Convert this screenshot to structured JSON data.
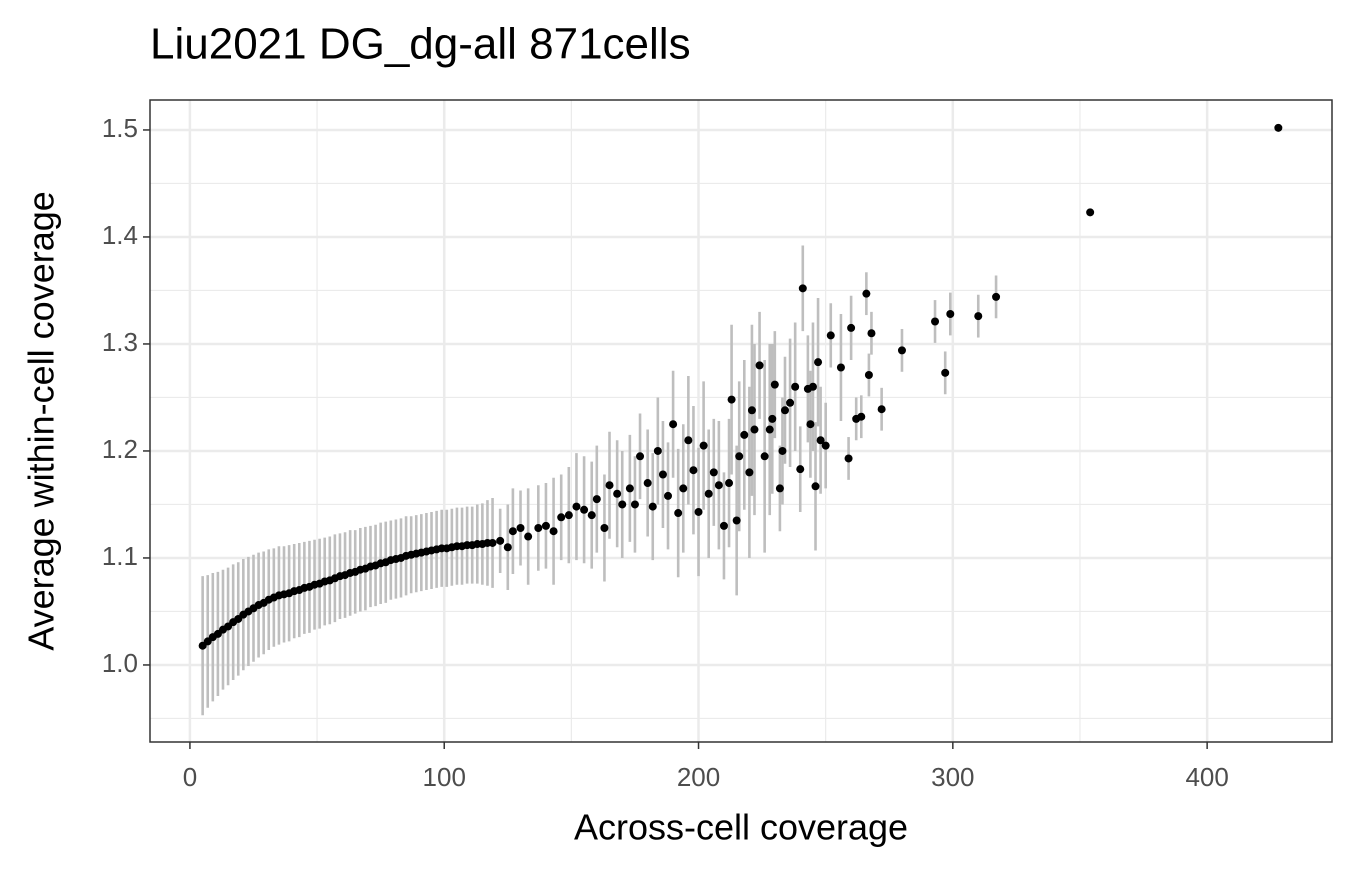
{
  "chart_data": {
    "type": "scatter",
    "title": "Liu2021 DG_dg-all 871cells",
    "x_label": "Across-cell coverage",
    "y_label": "Average within-cell coverage",
    "color": "#000000",
    "error_color": "#bebebe",
    "x": [
      5,
      7,
      9,
      11,
      13,
      15,
      17,
      19,
      21,
      23,
      25,
      27,
      29,
      31,
      33,
      35,
      37,
      39,
      41,
      43,
      45,
      47,
      49,
      51,
      53,
      55,
      57,
      59,
      61,
      63,
      65,
      67,
      69,
      71,
      73,
      75,
      77,
      79,
      81,
      83,
      85,
      87,
      89,
      91,
      93,
      95,
      97,
      99,
      101,
      103,
      105,
      107,
      109,
      111,
      113,
      115,
      117,
      119,
      122,
      125,
      127,
      130,
      133,
      137,
      140,
      143,
      146,
      149,
      152,
      155,
      158,
      160,
      163,
      165,
      168,
      170,
      173,
      175,
      177,
      180,
      182,
      184,
      186,
      188,
      190,
      192,
      194,
      196,
      198,
      200,
      202,
      204,
      206,
      208,
      210,
      212,
      213,
      215,
      216,
      218,
      220,
      221,
      222,
      224,
      226,
      228,
      229,
      230,
      232,
      233,
      234,
      236,
      238,
      240,
      241,
      243,
      244,
      245,
      246,
      247,
      248,
      250,
      252,
      256,
      259,
      260,
      262,
      264,
      266,
      267,
      268,
      272,
      280,
      293,
      297,
      299,
      310,
      317,
      354,
      428
    ],
    "values": [
      1.018,
      1.022,
      1.026,
      1.029,
      1.033,
      1.036,
      1.04,
      1.043,
      1.047,
      1.05,
      1.053,
      1.056,
      1.058,
      1.061,
      1.063,
      1.065,
      1.066,
      1.067,
      1.069,
      1.07,
      1.072,
      1.073,
      1.075,
      1.076,
      1.078,
      1.079,
      1.081,
      1.083,
      1.084,
      1.086,
      1.087,
      1.089,
      1.09,
      1.092,
      1.093,
      1.095,
      1.096,
      1.098,
      1.099,
      1.1,
      1.102,
      1.103,
      1.104,
      1.105,
      1.106,
      1.107,
      1.108,
      1.109,
      1.109,
      1.11,
      1.111,
      1.111,
      1.112,
      1.112,
      1.113,
      1.113,
      1.114,
      1.114,
      1.116,
      1.11,
      1.125,
      1.128,
      1.12,
      1.128,
      1.13,
      1.125,
      1.138,
      1.14,
      1.148,
      1.145,
      1.14,
      1.155,
      1.128,
      1.168,
      1.16,
      1.15,
      1.165,
      1.15,
      1.195,
      1.17,
      1.148,
      1.2,
      1.178,
      1.158,
      1.225,
      1.142,
      1.165,
      1.21,
      1.182,
      1.143,
      1.205,
      1.16,
      1.18,
      1.168,
      1.13,
      1.17,
      1.248,
      1.135,
      1.195,
      1.215,
      1.18,
      1.238,
      1.22,
      1.28,
      1.195,
      1.22,
      1.23,
      1.262,
      1.165,
      1.2,
      1.238,
      1.245,
      1.26,
      1.183,
      1.352,
      1.258,
      1.225,
      1.26,
      1.167,
      1.283,
      1.21,
      1.205,
      1.308,
      1.278,
      1.193,
      1.315,
      1.23,
      1.232,
      1.347,
      1.271,
      1.31,
      1.239,
      1.294,
      1.321,
      1.273,
      1.328,
      1.326,
      1.344,
      1.423,
      1.502
    ],
    "errors": [
      0.065,
      0.062,
      0.06,
      0.058,
      0.056,
      0.055,
      0.054,
      0.053,
      0.052,
      0.051,
      0.05,
      0.049,
      0.048,
      0.047,
      0.046,
      0.046,
      0.045,
      0.045,
      0.044,
      0.044,
      0.043,
      0.043,
      0.042,
      0.042,
      0.041,
      0.041,
      0.041,
      0.04,
      0.04,
      0.04,
      0.039,
      0.039,
      0.039,
      0.038,
      0.038,
      0.038,
      0.038,
      0.037,
      0.037,
      0.037,
      0.037,
      0.036,
      0.036,
      0.036,
      0.036,
      0.036,
      0.036,
      0.036,
      0.036,
      0.036,
      0.036,
      0.036,
      0.036,
      0.036,
      0.037,
      0.038,
      0.04,
      0.042,
      0.03,
      0.04,
      0.04,
      0.035,
      0.045,
      0.04,
      0.04,
      0.05,
      0.04,
      0.045,
      0.05,
      0.05,
      0.05,
      0.05,
      0.05,
      0.05,
      0.05,
      0.05,
      0.05,
      0.045,
      0.04,
      0.05,
      0.05,
      0.05,
      0.05,
      0.05,
      0.05,
      0.06,
      0.06,
      0.06,
      0.06,
      0.06,
      0.06,
      0.06,
      0.05,
      0.06,
      0.05,
      0.06,
      0.07,
      0.07,
      0.07,
      0.07,
      0.08,
      0.08,
      0.08,
      0.05,
      0.09,
      0.08,
      0.07,
      0.05,
      0.04,
      0.05,
      0.05,
      0.06,
      0.06,
      0.04,
      0.04,
      0.05,
      0.05,
      0.06,
      0.06,
      0.06,
      0.05,
      0.04,
      0.03,
      0.05,
      0.02,
      0.03,
      0.02,
      0.02,
      0.02,
      0.02,
      0.02,
      0.02,
      0.02,
      0.02,
      0.02,
      0.02,
      0.02,
      0.02,
      0,
      0
    ],
    "xlim": [
      -15.7,
      449.1
    ],
    "ylim": [
      0.928,
      1.528
    ],
    "xticks": [
      0,
      100,
      200,
      300,
      400
    ],
    "yticks": [
      {
        "value": 1.0,
        "label": "1.0"
      },
      1.1,
      1.2,
      1.3,
      1.4,
      1.5
    ],
    "x_minor_grid": [
      50,
      150,
      250,
      350
    ],
    "y_minor_grid": [
      0.95,
      1.05,
      1.15,
      1.25,
      1.35,
      1.45
    ],
    "grid": true
  }
}
